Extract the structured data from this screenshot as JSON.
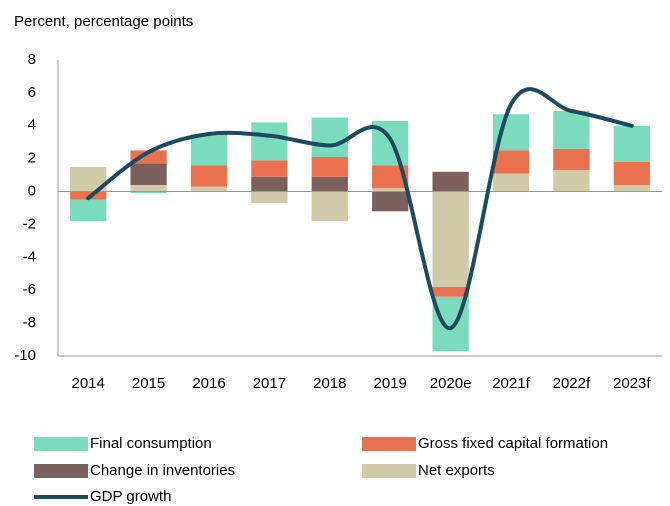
{
  "chart_data": {
    "type": "bar",
    "subtitle": "Percent, percentage points",
    "categories": [
      "2014",
      "2015",
      "2016",
      "2017",
      "2018",
      "2019",
      "2020e",
      "2021f",
      "2022f",
      "2023f"
    ],
    "series": [
      {
        "name": "Net exports",
        "color": "#cfcba9",
        "values": [
          1.5,
          0.4,
          0.3,
          -0.7,
          -1.8,
          0.2,
          -5.8,
          1.1,
          1.3,
          0.4
        ]
      },
      {
        "name": "Change in inventories",
        "color": "#7a615d",
        "values": [
          0,
          1.3,
          0,
          0.9,
          0.9,
          -1.2,
          1.2,
          0,
          0,
          0
        ]
      },
      {
        "name": "Gross fixed capital formation",
        "color": "#e9714f",
        "values": [
          -0.5,
          0.8,
          1.3,
          1.0,
          1.2,
          1.4,
          -0.6,
          1.4,
          1.3,
          1.4
        ]
      },
      {
        "name": "Final consumption",
        "color": "#7bdbbd",
        "values": [
          -1.3,
          -0.1,
          1.9,
          2.3,
          2.4,
          2.7,
          -3.3,
          2.2,
          2.3,
          2.2
        ]
      },
      {
        "name": "GDP growth",
        "color": "#1d4a5f",
        "type": "line",
        "values": [
          -0.4,
          2.4,
          3.5,
          3.4,
          2.8,
          3.2,
          -8.3,
          5.3,
          4.9,
          4.0
        ]
      }
    ],
    "ylim": [
      -10,
      8
    ],
    "yticks": [
      -10,
      -8,
      -6,
      -4,
      -2,
      0,
      2,
      4,
      6,
      8
    ],
    "grid": false
  }
}
